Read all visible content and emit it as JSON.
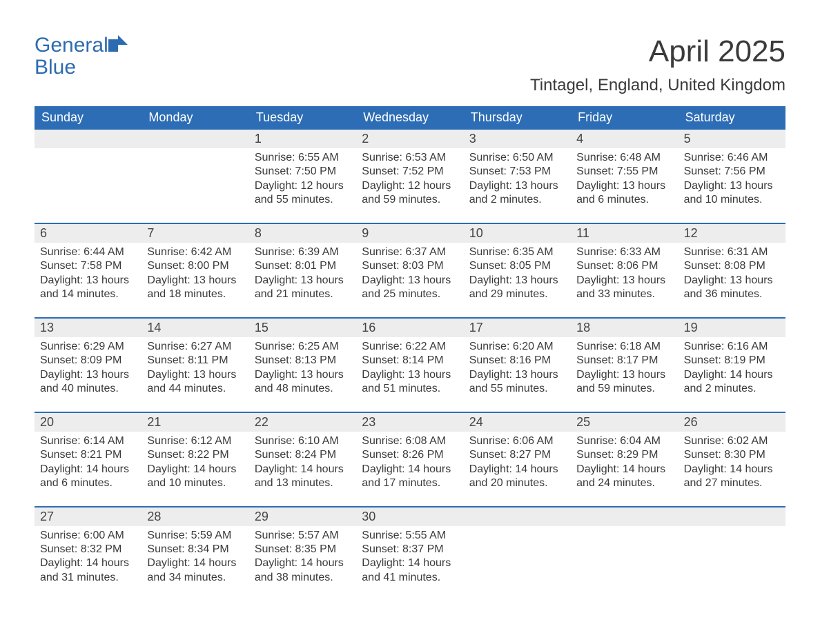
{
  "brand": {
    "word1": "General",
    "word2": "Blue"
  },
  "title": "April 2025",
  "location": "Tintagel, England, United Kingdom",
  "colors": {
    "header_bg": "#2d6db5",
    "header_text": "#ffffff",
    "daynum_bg": "#ededed",
    "text": "#3a3a3a",
    "logo": "#2d6bb0",
    "page_bg": "#ffffff"
  },
  "weekdays": [
    "Sunday",
    "Monday",
    "Tuesday",
    "Wednesday",
    "Thursday",
    "Friday",
    "Saturday"
  ],
  "weeks": [
    [
      null,
      null,
      {
        "n": "1",
        "sunrise": "6:55 AM",
        "sunset": "7:50 PM",
        "daylight": "12 hours and 55 minutes."
      },
      {
        "n": "2",
        "sunrise": "6:53 AM",
        "sunset": "7:52 PM",
        "daylight": "12 hours and 59 minutes."
      },
      {
        "n": "3",
        "sunrise": "6:50 AM",
        "sunset": "7:53 PM",
        "daylight": "13 hours and 2 minutes."
      },
      {
        "n": "4",
        "sunrise": "6:48 AM",
        "sunset": "7:55 PM",
        "daylight": "13 hours and 6 minutes."
      },
      {
        "n": "5",
        "sunrise": "6:46 AM",
        "sunset": "7:56 PM",
        "daylight": "13 hours and 10 minutes."
      }
    ],
    [
      {
        "n": "6",
        "sunrise": "6:44 AM",
        "sunset": "7:58 PM",
        "daylight": "13 hours and 14 minutes."
      },
      {
        "n": "7",
        "sunrise": "6:42 AM",
        "sunset": "8:00 PM",
        "daylight": "13 hours and 18 minutes."
      },
      {
        "n": "8",
        "sunrise": "6:39 AM",
        "sunset": "8:01 PM",
        "daylight": "13 hours and 21 minutes."
      },
      {
        "n": "9",
        "sunrise": "6:37 AM",
        "sunset": "8:03 PM",
        "daylight": "13 hours and 25 minutes."
      },
      {
        "n": "10",
        "sunrise": "6:35 AM",
        "sunset": "8:05 PM",
        "daylight": "13 hours and 29 minutes."
      },
      {
        "n": "11",
        "sunrise": "6:33 AM",
        "sunset": "8:06 PM",
        "daylight": "13 hours and 33 minutes."
      },
      {
        "n": "12",
        "sunrise": "6:31 AM",
        "sunset": "8:08 PM",
        "daylight": "13 hours and 36 minutes."
      }
    ],
    [
      {
        "n": "13",
        "sunrise": "6:29 AM",
        "sunset": "8:09 PM",
        "daylight": "13 hours and 40 minutes."
      },
      {
        "n": "14",
        "sunrise": "6:27 AM",
        "sunset": "8:11 PM",
        "daylight": "13 hours and 44 minutes."
      },
      {
        "n": "15",
        "sunrise": "6:25 AM",
        "sunset": "8:13 PM",
        "daylight": "13 hours and 48 minutes."
      },
      {
        "n": "16",
        "sunrise": "6:22 AM",
        "sunset": "8:14 PM",
        "daylight": "13 hours and 51 minutes."
      },
      {
        "n": "17",
        "sunrise": "6:20 AM",
        "sunset": "8:16 PM",
        "daylight": "13 hours and 55 minutes."
      },
      {
        "n": "18",
        "sunrise": "6:18 AM",
        "sunset": "8:17 PM",
        "daylight": "13 hours and 59 minutes."
      },
      {
        "n": "19",
        "sunrise": "6:16 AM",
        "sunset": "8:19 PM",
        "daylight": "14 hours and 2 minutes."
      }
    ],
    [
      {
        "n": "20",
        "sunrise": "6:14 AM",
        "sunset": "8:21 PM",
        "daylight": "14 hours and 6 minutes."
      },
      {
        "n": "21",
        "sunrise": "6:12 AM",
        "sunset": "8:22 PM",
        "daylight": "14 hours and 10 minutes."
      },
      {
        "n": "22",
        "sunrise": "6:10 AM",
        "sunset": "8:24 PM",
        "daylight": "14 hours and 13 minutes."
      },
      {
        "n": "23",
        "sunrise": "6:08 AM",
        "sunset": "8:26 PM",
        "daylight": "14 hours and 17 minutes."
      },
      {
        "n": "24",
        "sunrise": "6:06 AM",
        "sunset": "8:27 PM",
        "daylight": "14 hours and 20 minutes."
      },
      {
        "n": "25",
        "sunrise": "6:04 AM",
        "sunset": "8:29 PM",
        "daylight": "14 hours and 24 minutes."
      },
      {
        "n": "26",
        "sunrise": "6:02 AM",
        "sunset": "8:30 PM",
        "daylight": "14 hours and 27 minutes."
      }
    ],
    [
      {
        "n": "27",
        "sunrise": "6:00 AM",
        "sunset": "8:32 PM",
        "daylight": "14 hours and 31 minutes."
      },
      {
        "n": "28",
        "sunrise": "5:59 AM",
        "sunset": "8:34 PM",
        "daylight": "14 hours and 34 minutes."
      },
      {
        "n": "29",
        "sunrise": "5:57 AM",
        "sunset": "8:35 PM",
        "daylight": "14 hours and 38 minutes."
      },
      {
        "n": "30",
        "sunrise": "5:55 AM",
        "sunset": "8:37 PM",
        "daylight": "14 hours and 41 minutes."
      },
      null,
      null,
      null
    ]
  ],
  "labels": {
    "sunrise": "Sunrise: ",
    "sunset": "Sunset: ",
    "daylight": "Daylight: "
  }
}
